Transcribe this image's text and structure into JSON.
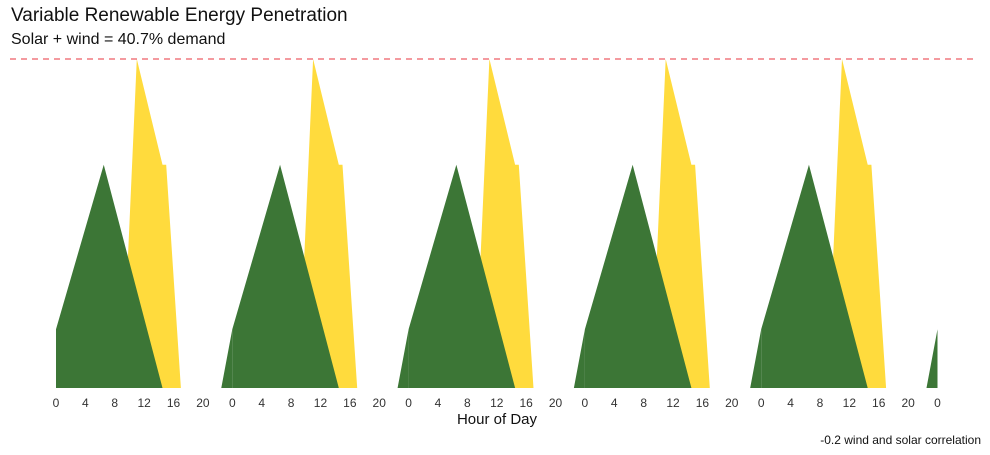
{
  "title": "Variable Renewable Energy Penetration",
  "subtitle": "Solar + wind = 40.7% demand",
  "caption": "-0.2 wind and solar correlation",
  "chart_data": {
    "type": "area",
    "title": "Variable Renewable Energy Penetration",
    "subtitle": "Solar + wind = 40.7% demand",
    "xlabel": "Hour of Day",
    "ylabel": "",
    "days": 5,
    "hours_per_day": 24,
    "x_tick_labels": [
      "0",
      "4",
      "8",
      "12",
      "16",
      "20",
      "0",
      "4",
      "8",
      "12",
      "16",
      "20",
      "0",
      "4",
      "8",
      "12",
      "16",
      "20",
      "0",
      "4",
      "8",
      "12",
      "16",
      "20",
      "0",
      "4",
      "8",
      "12",
      "16",
      "20",
      "0"
    ],
    "x_range": [
      0,
      120
    ],
    "y_range": [
      0,
      1.4
    ],
    "reference_line": {
      "value": 1.4,
      "style": "dashed",
      "color": "#e8343f"
    },
    "grid": false,
    "series": [
      {
        "key": "solar",
        "color": "#ffdb3d",
        "daily_profile": [
          [
            0,
            0
          ],
          [
            9,
            0
          ],
          [
            11,
            1.4
          ],
          [
            14.5,
            0.95
          ],
          [
            15,
            0.95
          ],
          [
            17,
            0
          ],
          [
            24,
            0
          ]
        ]
      },
      {
        "key": "wind",
        "color": "#3c7636",
        "daily_profile": [
          [
            0,
            0.25
          ],
          [
            6.5,
            0.95
          ],
          [
            14.5,
            0
          ],
          [
            22.5,
            0
          ],
          [
            24,
            0.25
          ]
        ]
      }
    ],
    "colors": {
      "solar": "#ffdb3d",
      "wind": "#3c7636",
      "reference": "#e8343f"
    }
  }
}
